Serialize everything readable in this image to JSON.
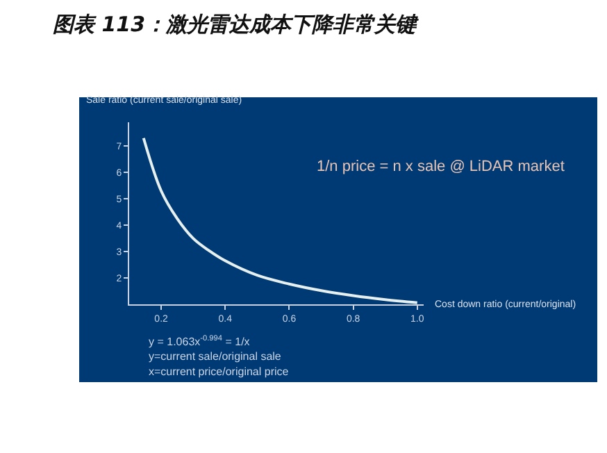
{
  "chart_data": {
    "type": "line",
    "title": "图表 113：激光雷达成本下降非常关键",
    "xlabel": "Cost down ratio (current/original)",
    "ylabel": "Sale ratio (current sale/original sale)",
    "x": [
      0.145,
      0.2,
      0.25,
      0.3,
      0.35,
      0.4,
      0.5,
      0.6,
      0.7,
      0.8,
      0.9,
      1.0
    ],
    "series": [
      {
        "color": "#e6f0ee",
        "values": [
          7.3,
          5.3,
          4.25,
          3.5,
          3.03,
          2.65,
          2.1,
          1.77,
          1.52,
          1.33,
          1.18,
          1.06
        ]
      }
    ],
    "xlim": [
      0.1,
      1.02
    ],
    "ylim": [
      1,
      7.9
    ],
    "xticks": [
      0.2,
      0.4,
      0.6,
      0.8,
      {
        "value": 1.0,
        "label": "1.0"
      }
    ],
    "yticks": [
      2,
      3,
      4,
      5,
      6,
      7
    ],
    "annotations": [
      "1/n price = n x sale @ LiDAR market",
      "y = 1.063x$^{-0.994}$ = 1/x",
      "y=current sale/original sale",
      "x=current price/original price"
    ],
    "grid": false,
    "marker": "none",
    "line_style": "solid"
  }
}
